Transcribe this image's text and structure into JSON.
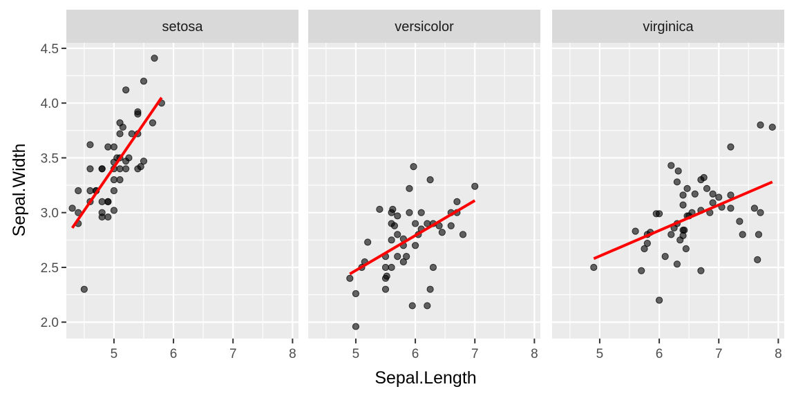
{
  "chart_data": {
    "type": "scatter",
    "xlabel": "Sepal.Length",
    "ylabel": "Sepal.Width",
    "xlim": [
      4.2,
      8.1
    ],
    "ylim": [
      1.85,
      4.55
    ],
    "x_ticks": [
      5,
      6,
      7,
      8
    ],
    "y_ticks": [
      2.0,
      2.5,
      3.0,
      3.5,
      4.0,
      4.5
    ],
    "y_tick_labels": [
      "2.0",
      "2.5",
      "3.0",
      "3.5",
      "4.0",
      "4.5"
    ],
    "grid": true,
    "point_color": "#000000",
    "line_color": "#ff0000",
    "facets": [
      {
        "name": "setosa",
        "points": [
          [
            4.3,
            3.04
          ],
          [
            4.4,
            2.9
          ],
          [
            4.4,
            3.0
          ],
          [
            4.4,
            3.2
          ],
          [
            4.5,
            2.3
          ],
          [
            4.6,
            3.1
          ],
          [
            4.6,
            3.2
          ],
          [
            4.6,
            3.4
          ],
          [
            4.6,
            3.62
          ],
          [
            4.7,
            3.2
          ],
          [
            4.7,
            3.2
          ],
          [
            4.8,
            2.96
          ],
          [
            4.8,
            3.0
          ],
          [
            4.8,
            3.1
          ],
          [
            4.8,
            3.4
          ],
          [
            4.8,
            3.4
          ],
          [
            4.9,
            2.96
          ],
          [
            4.9,
            3.1
          ],
          [
            4.9,
            3.1
          ],
          [
            4.9,
            3.6
          ],
          [
            5.0,
            3.02
          ],
          [
            5.0,
            3.2
          ],
          [
            5.0,
            3.3
          ],
          [
            5.0,
            3.4
          ],
          [
            5.0,
            3.46
          ],
          [
            5.0,
            3.6
          ],
          [
            5.05,
            3.5
          ],
          [
            5.1,
            3.3
          ],
          [
            5.1,
            3.4
          ],
          [
            5.1,
            3.5
          ],
          [
            5.1,
            3.72
          ],
          [
            5.1,
            3.82
          ],
          [
            5.15,
            3.78
          ],
          [
            5.2,
            3.4
          ],
          [
            5.2,
            3.47
          ],
          [
            5.2,
            4.12
          ],
          [
            5.25,
            3.5
          ],
          [
            5.3,
            3.72
          ],
          [
            5.4,
            3.4
          ],
          [
            5.4,
            3.72
          ],
          [
            5.4,
            3.9
          ],
          [
            5.4,
            3.92
          ],
          [
            5.45,
            3.42
          ],
          [
            5.5,
            3.47
          ],
          [
            5.5,
            4.2
          ],
          [
            5.65,
            3.82
          ],
          [
            5.68,
            4.41
          ],
          [
            5.8,
            4.0
          ]
        ],
        "fit": {
          "x": [
            4.3,
            5.8
          ],
          "y": [
            2.86,
            4.05
          ]
        }
      },
      {
        "name": "versicolor",
        "points": [
          [
            4.9,
            2.4
          ],
          [
            5.0,
            1.96
          ],
          [
            5.0,
            2.26
          ],
          [
            5.1,
            2.5
          ],
          [
            5.15,
            2.55
          ],
          [
            5.2,
            2.73
          ],
          [
            5.4,
            3.03
          ],
          [
            5.5,
            2.3
          ],
          [
            5.5,
            2.4
          ],
          [
            5.5,
            2.5
          ],
          [
            5.5,
            2.6
          ],
          [
            5.52,
            2.42
          ],
          [
            5.6,
            2.5
          ],
          [
            5.6,
            2.75
          ],
          [
            5.6,
            2.9
          ],
          [
            5.6,
            3.0
          ],
          [
            5.62,
            3.03
          ],
          [
            5.65,
            2.88
          ],
          [
            5.7,
            2.6
          ],
          [
            5.7,
            2.8
          ],
          [
            5.7,
            2.97
          ],
          [
            5.8,
            2.55
          ],
          [
            5.8,
            2.7
          ],
          [
            5.8,
            2.76
          ],
          [
            5.85,
            2.6
          ],
          [
            5.9,
            3.0
          ],
          [
            5.9,
            3.22
          ],
          [
            5.95,
            2.15
          ],
          [
            5.97,
            3.42
          ],
          [
            6.0,
            2.7
          ],
          [
            6.0,
            2.9
          ],
          [
            6.05,
            2.8
          ],
          [
            6.1,
            2.85
          ],
          [
            6.1,
            3.0
          ],
          [
            6.2,
            2.15
          ],
          [
            6.2,
            2.9
          ],
          [
            6.25,
            2.3
          ],
          [
            6.3,
            2.5
          ],
          [
            6.25,
            3.3
          ],
          [
            6.3,
            2.9
          ],
          [
            6.4,
            2.88
          ],
          [
            6.45,
            2.82
          ],
          [
            6.6,
            2.88
          ],
          [
            6.6,
            3.0
          ],
          [
            6.7,
            3.0
          ],
          [
            6.7,
            3.1
          ],
          [
            6.8,
            2.8
          ],
          [
            7.0,
            3.24
          ]
        ],
        "fit": {
          "x": [
            4.9,
            7.0
          ],
          "y": [
            2.44,
            3.11
          ]
        }
      },
      {
        "name": "virginica",
        "points": [
          [
            4.9,
            2.5
          ],
          [
            5.6,
            2.83
          ],
          [
            5.7,
            2.47
          ],
          [
            5.75,
            2.67
          ],
          [
            5.8,
            2.72
          ],
          [
            5.8,
            2.8
          ],
          [
            5.85,
            2.82
          ],
          [
            5.95,
            2.99
          ],
          [
            6.0,
            2.2
          ],
          [
            6.0,
            2.99
          ],
          [
            6.1,
            2.6
          ],
          [
            6.2,
            2.8
          ],
          [
            6.2,
            3.43
          ],
          [
            6.25,
            2.86
          ],
          [
            6.3,
            2.53
          ],
          [
            6.3,
            2.9
          ],
          [
            6.3,
            3.28
          ],
          [
            6.32,
            3.38
          ],
          [
            6.35,
            2.75
          ],
          [
            6.4,
            2.79
          ],
          [
            6.4,
            2.84
          ],
          [
            6.4,
            3.07
          ],
          [
            6.4,
            3.16
          ],
          [
            6.42,
            2.84
          ],
          [
            6.45,
            2.67
          ],
          [
            6.47,
            2.97
          ],
          [
            6.47,
            3.22
          ],
          [
            6.5,
            2.97
          ],
          [
            6.55,
            3.0
          ],
          [
            6.6,
            3.17
          ],
          [
            6.7,
            2.47
          ],
          [
            6.7,
            3.02
          ],
          [
            6.7,
            3.3
          ],
          [
            6.75,
            3.32
          ],
          [
            6.8,
            3.22
          ],
          [
            6.85,
            3.0
          ],
          [
            6.9,
            3.09
          ],
          [
            6.9,
            3.17
          ],
          [
            7.0,
            3.14
          ],
          [
            7.05,
            3.05
          ],
          [
            7.2,
            3.04
          ],
          [
            7.2,
            3.16
          ],
          [
            7.2,
            3.6
          ],
          [
            7.35,
            2.92
          ],
          [
            7.4,
            2.8
          ],
          [
            7.6,
            3.04
          ],
          [
            7.65,
            2.57
          ],
          [
            7.67,
            2.8
          ],
          [
            7.7,
            3.0
          ],
          [
            7.7,
            3.8
          ],
          [
            7.9,
            3.78
          ]
        ],
        "fit": {
          "x": [
            4.9,
            7.9
          ],
          "y": [
            2.58,
            3.28
          ]
        }
      }
    ]
  }
}
